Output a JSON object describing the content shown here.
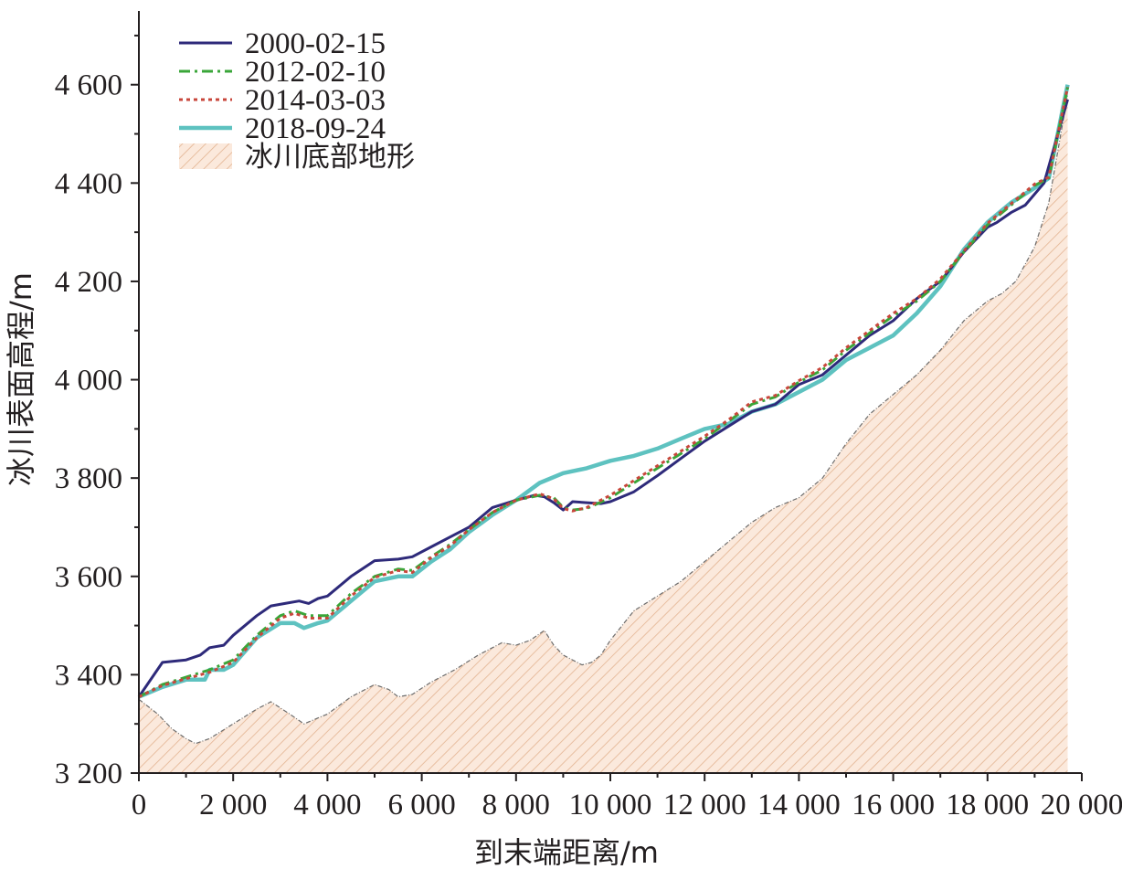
{
  "chart_data": {
    "type": "line",
    "title": "",
    "xlabel": "到末端距离/m",
    "ylabel": "冰川表面高程/m",
    "xlim": [
      0,
      20000
    ],
    "ylim": [
      3200,
      4750
    ],
    "x_ticks": [
      0,
      2000,
      4000,
      6000,
      8000,
      10000,
      12000,
      14000,
      16000,
      18000,
      20000
    ],
    "x_tick_labels": [
      "0",
      "2 000",
      "4 000",
      "6 000",
      "8 000",
      "10 000",
      "12 000",
      "14 000",
      "16 000",
      "18 000",
      "20 000"
    ],
    "y_ticks": [
      3200,
      3400,
      3600,
      3800,
      4000,
      4200,
      4400,
      4600
    ],
    "y_tick_labels": [
      "3 200",
      "3 400",
      "3 600",
      "3 800",
      "4 000",
      "4 200",
      "4 400",
      "4 600"
    ],
    "grid": false,
    "legend_position": "top-left",
    "series": [
      {
        "name": "2000-02-15",
        "color": "#2e2a7a",
        "style": "solid",
        "x": [
          0,
          500,
          1000,
          1300,
          1500,
          1800,
          2000,
          2500,
          2800,
          3100,
          3400,
          3600,
          3800,
          4000,
          4500,
          5000,
          5500,
          5800,
          6200,
          6600,
          7000,
          7500,
          8000,
          8400,
          8600,
          8800,
          9000,
          9200,
          9500,
          9800,
          10000,
          10500,
          11000,
          11500,
          12000,
          12500,
          13000,
          13500,
          14000,
          14500,
          15000,
          15500,
          16000,
          16500,
          17000,
          17500,
          18000,
          18200,
          18500,
          18800,
          19200,
          19700
        ],
        "y": [
          3355,
          3425,
          3430,
          3440,
          3455,
          3460,
          3480,
          3520,
          3540,
          3545,
          3550,
          3545,
          3555,
          3560,
          3600,
          3632,
          3635,
          3640,
          3660,
          3680,
          3700,
          3740,
          3755,
          3765,
          3762,
          3750,
          3735,
          3752,
          3750,
          3748,
          3752,
          3772,
          3805,
          3840,
          3875,
          3905,
          3935,
          3950,
          3990,
          4010,
          4050,
          4090,
          4120,
          4165,
          4200,
          4260,
          4310,
          4320,
          4340,
          4355,
          4400,
          4570
        ]
      },
      {
        "name": "2012-02-10",
        "color": "#3aa639",
        "style": "dashdot",
        "x": [
          0,
          500,
          1000,
          1500,
          2000,
          2500,
          3000,
          3300,
          3600,
          4000,
          4500,
          5000,
          5500,
          5800,
          6200,
          6600,
          7000,
          7500,
          8000,
          8500,
          8800,
          9000,
          9200,
          9500,
          10000,
          10500,
          11000,
          11500,
          12000,
          12500,
          13000,
          13500,
          14000,
          14500,
          15000,
          15500,
          16000,
          16500,
          17000,
          17500,
          18000,
          18500,
          19000,
          19300,
          19700
        ],
        "y": [
          3355,
          3380,
          3395,
          3410,
          3430,
          3480,
          3520,
          3530,
          3520,
          3520,
          3565,
          3600,
          3615,
          3612,
          3640,
          3665,
          3695,
          3730,
          3755,
          3765,
          3760,
          3740,
          3735,
          3738,
          3760,
          3790,
          3820,
          3850,
          3880,
          3915,
          3950,
          3965,
          3995,
          4020,
          4060,
          4095,
          4130,
          4160,
          4200,
          4260,
          4315,
          4355,
          4395,
          4410,
          4595
        ]
      },
      {
        "name": "2014-03-03",
        "color": "#c8473c",
        "style": "dotted",
        "x": [
          0,
          500,
          1000,
          1500,
          2000,
          2500,
          3000,
          3300,
          3600,
          4000,
          4500,
          5000,
          5500,
          5800,
          6200,
          6600,
          7000,
          7500,
          8000,
          8500,
          8800,
          9000,
          9200,
          9500,
          10000,
          10500,
          11000,
          11500,
          12000,
          12500,
          13000,
          13500,
          14000,
          14500,
          15000,
          15500,
          16000,
          16500,
          17000,
          17500,
          18000,
          18500,
          19000,
          19300,
          19700
        ],
        "y": [
          3355,
          3378,
          3392,
          3405,
          3425,
          3475,
          3515,
          3525,
          3515,
          3515,
          3560,
          3598,
          3612,
          3608,
          3638,
          3662,
          3695,
          3730,
          3755,
          3768,
          3758,
          3738,
          3733,
          3740,
          3765,
          3795,
          3825,
          3855,
          3885,
          3918,
          3955,
          3968,
          3998,
          4025,
          4065,
          4100,
          4135,
          4165,
          4205,
          4262,
          4318,
          4358,
          4398,
          4412,
          4595
        ]
      },
      {
        "name": "2018-09-24",
        "color": "#5ec2c0",
        "style": "solid",
        "x": [
          0,
          500,
          1000,
          1400,
          1500,
          1800,
          2000,
          2500,
          3000,
          3300,
          3500,
          3800,
          4000,
          4500,
          5000,
          5500,
          5800,
          6200,
          6600,
          7000,
          7500,
          8000,
          8500,
          9000,
          9500,
          10000,
          10500,
          11000,
          11500,
          12000,
          12500,
          13000,
          13500,
          14000,
          14500,
          15000,
          15500,
          16000,
          16500,
          17000,
          17500,
          18000,
          18500,
          19000,
          19300,
          19700
        ],
        "y": [
          3355,
          3375,
          3390,
          3390,
          3410,
          3410,
          3420,
          3475,
          3505,
          3505,
          3495,
          3505,
          3510,
          3550,
          3590,
          3600,
          3600,
          3630,
          3655,
          3690,
          3725,
          3755,
          3790,
          3810,
          3820,
          3835,
          3845,
          3860,
          3880,
          3900,
          3910,
          3935,
          3950,
          3975,
          4000,
          4040,
          4065,
          4090,
          4135,
          4190,
          4265,
          4320,
          4360,
          4390,
          4410,
          4600
        ]
      },
      {
        "name": "冰川底部地形",
        "color": "#e8b48c",
        "style": "hatched-area",
        "x": [
          0,
          400,
          700,
          1000,
          1200,
          1500,
          2000,
          2500,
          2800,
          3200,
          3500,
          4000,
          4500,
          5000,
          5300,
          5500,
          5800,
          6200,
          6700,
          7200,
          7700,
          8000,
          8300,
          8600,
          8800,
          9000,
          9400,
          9600,
          9800,
          10000,
          10500,
          11000,
          11500,
          12000,
          12500,
          13000,
          13500,
          14000,
          14500,
          15000,
          15500,
          16000,
          16500,
          17000,
          17500,
          18000,
          18300,
          18600,
          19000,
          19300,
          19700
        ],
        "y": [
          3350,
          3320,
          3290,
          3270,
          3260,
          3270,
          3300,
          3330,
          3345,
          3320,
          3300,
          3320,
          3355,
          3380,
          3370,
          3355,
          3360,
          3385,
          3410,
          3440,
          3465,
          3460,
          3470,
          3490,
          3460,
          3440,
          3420,
          3425,
          3440,
          3470,
          3530,
          3560,
          3590,
          3630,
          3670,
          3710,
          3740,
          3760,
          3800,
          3870,
          3930,
          3970,
          4010,
          4060,
          4120,
          4160,
          4175,
          4200,
          4270,
          4360,
          4580
        ]
      }
    ]
  }
}
